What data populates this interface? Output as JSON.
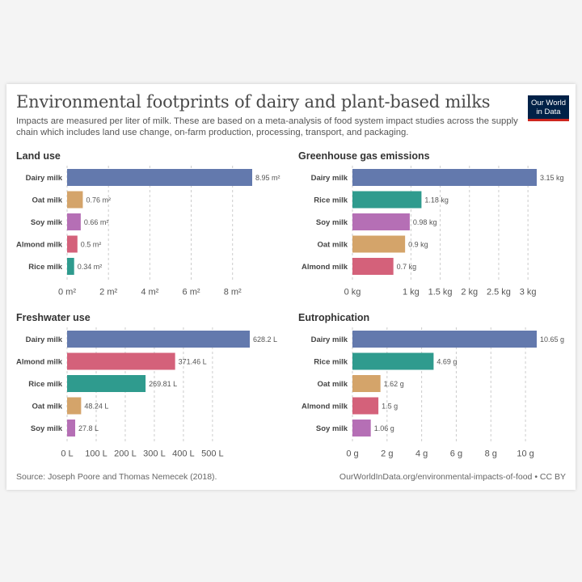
{
  "title": "Environmental footprints of dairy and plant-based milks",
  "subtitle": "Impacts are measured per liter of milk. These are based on a meta-analysis of food system impact studies across the supply chain which includes land use change, on-farm production, processing, transport, and packaging.",
  "logo": {
    "line1": "Our World",
    "line2": "in Data"
  },
  "footer": {
    "source": "Source: Joseph Poore and Thomas Nemecek (2018).",
    "link": "OurWorldInData.org/environmental-impacts-of-food • CC BY"
  },
  "colors": {
    "Dairy milk": "#6379ad",
    "Oat milk": "#d4a46a",
    "Soy milk": "#b56fb5",
    "Almond milk": "#d4617a",
    "Rice milk": "#2f9b8e",
    "grid": "#cccccc"
  },
  "chart_data": [
    {
      "type": "bar",
      "orientation": "horizontal",
      "title": "Land use",
      "categories": [
        "Dairy milk",
        "Oat milk",
        "Soy milk",
        "Almond milk",
        "Rice milk"
      ],
      "values": [
        8.95,
        0.76,
        0.66,
        0.5,
        0.34
      ],
      "value_labels": [
        "8.95 m²",
        "0.76 m²",
        "0.66 m²",
        "0.5 m²",
        "0.34 m²"
      ],
      "xlim": [
        0,
        8.95
      ],
      "ticks": [
        0,
        2,
        4,
        6,
        8
      ],
      "tick_labels": [
        "0 m²",
        "2 m²",
        "4 m²",
        "6 m²",
        "8 m²"
      ]
    },
    {
      "type": "bar",
      "orientation": "horizontal",
      "title": "Greenhouse gas emissions",
      "categories": [
        "Dairy milk",
        "Rice milk",
        "Soy milk",
        "Oat milk",
        "Almond milk"
      ],
      "values": [
        3.15,
        1.18,
        0.98,
        0.9,
        0.7
      ],
      "value_labels": [
        "3.15 kg",
        "1.18 kg",
        "0.98 kg",
        "0.9 kg",
        "0.7 kg"
      ],
      "xlim": [
        0,
        3.15
      ],
      "ticks": [
        0,
        1,
        1.5,
        2,
        2.5,
        3
      ],
      "tick_labels": [
        "0 kg",
        "1 kg",
        "1.5 kg",
        "2 kg",
        "2.5 kg",
        "3 kg"
      ]
    },
    {
      "type": "bar",
      "orientation": "horizontal",
      "title": "Freshwater use",
      "categories": [
        "Dairy milk",
        "Almond milk",
        "Rice milk",
        "Oat milk",
        "Soy milk"
      ],
      "values": [
        628.2,
        371.46,
        269.81,
        48.24,
        27.8
      ],
      "value_labels": [
        "628.2 L",
        "371.46 L",
        "269.81 L",
        "48.24 L",
        "27.8 L"
      ],
      "xlim": [
        0,
        628.2
      ],
      "ticks": [
        0,
        100,
        200,
        300,
        400,
        500
      ],
      "tick_labels": [
        "0 L",
        "100 L",
        "200 L",
        "300 L",
        "400 L",
        "500 L"
      ]
    },
    {
      "type": "bar",
      "orientation": "horizontal",
      "title": "Eutrophication",
      "categories": [
        "Dairy milk",
        "Rice milk",
        "Oat milk",
        "Almond milk",
        "Soy milk"
      ],
      "values": [
        10.65,
        4.69,
        1.62,
        1.5,
        1.06
      ],
      "value_labels": [
        "10.65 g",
        "4.69 g",
        "1.62 g",
        "1.5 g",
        "1.06 g"
      ],
      "xlim": [
        0,
        10.65
      ],
      "ticks": [
        0,
        2,
        4,
        6,
        8,
        10
      ],
      "tick_labels": [
        "0 g",
        "2 g",
        "4 g",
        "6 g",
        "8 g",
        "10 g"
      ]
    }
  ]
}
